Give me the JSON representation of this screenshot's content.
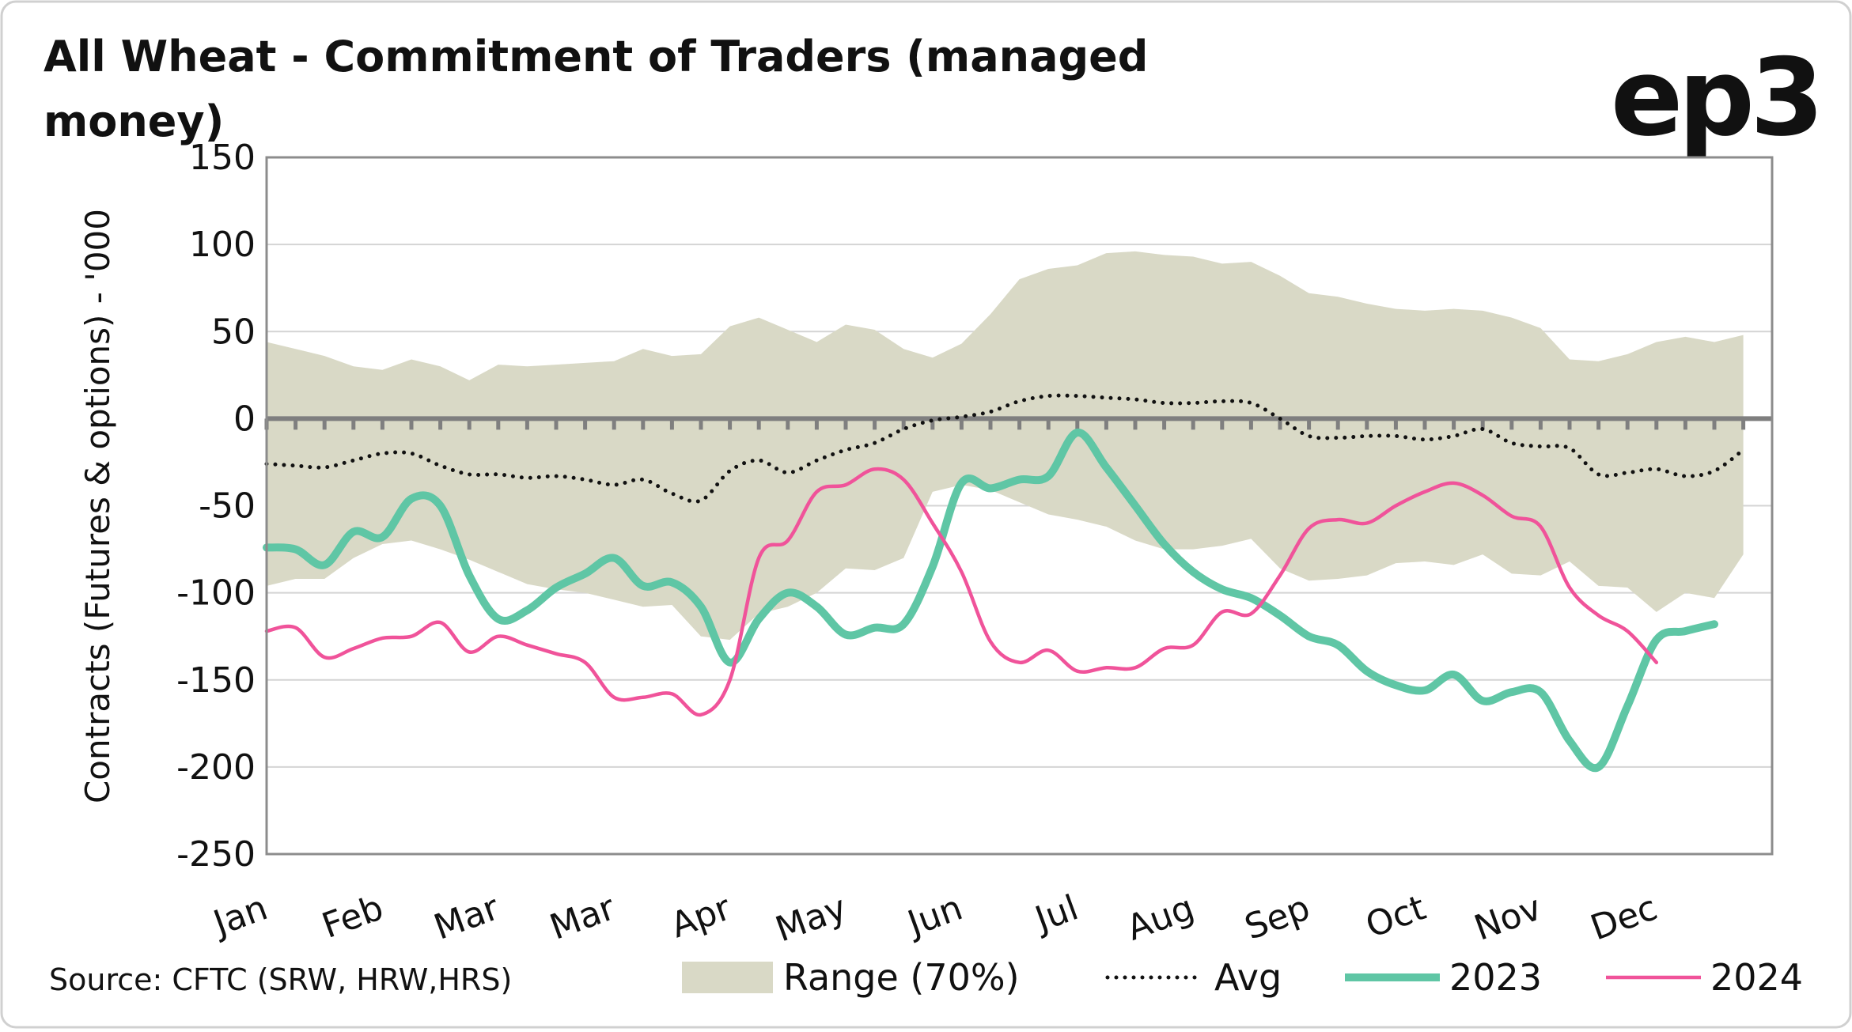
{
  "chart_data": {
    "type": "line",
    "title": "All Wheat - Commitment of Traders (managed",
    "title_line2": "money)",
    "logo": "ep3",
    "source": "Source: CFTC (SRW, HRW,HRS)",
    "ylabel": "Contracts (Futures & options) - '000",
    "categories": [
      "Jan",
      null,
      null,
      null,
      "Feb",
      null,
      null,
      null,
      "Mar",
      null,
      null,
      null,
      "Mar",
      null,
      null,
      null,
      "Apr",
      null,
      null,
      null,
      "May",
      null,
      null,
      null,
      "Jun",
      null,
      null,
      null,
      "Jul",
      null,
      null,
      null,
      "Aug",
      null,
      null,
      null,
      "Sep",
      null,
      null,
      null,
      "Oct",
      null,
      null,
      null,
      "Nov",
      null,
      null,
      null,
      "Dec",
      null,
      null,
      null
    ],
    "ylim": [
      -250,
      150
    ],
    "yticks": [
      -250,
      -200,
      -150,
      -100,
      -50,
      0,
      50,
      100,
      150
    ],
    "grid": true,
    "series": [
      {
        "name": "Range (70%)",
        "type": "band",
        "color": "#d9d9c6",
        "upper": [
          44,
          40,
          36,
          30,
          28,
          34,
          30,
          22,
          31,
          30,
          31,
          32,
          33,
          40,
          36,
          37,
          53,
          58,
          51,
          44,
          54,
          51,
          40,
          35,
          43,
          60,
          80,
          86,
          88,
          95,
          96,
          94,
          93,
          89,
          90,
          82,
          72,
          70,
          66,
          63,
          62,
          63,
          62,
          58,
          52,
          34,
          33,
          37,
          44,
          47,
          44,
          48
        ],
        "lower": [
          -96,
          -92,
          -92,
          -80,
          -72,
          -70,
          -75,
          -81,
          -88,
          -95,
          -98,
          -100,
          -104,
          -108,
          -107,
          -125,
          -127,
          -112,
          -108,
          -100,
          -86,
          -87,
          -80,
          -42,
          -38,
          -41,
          -48,
          -55,
          -58,
          -62,
          -70,
          -75,
          -75,
          -73,
          -69,
          -86,
          -93,
          -92,
          -90,
          -83,
          -82,
          -84,
          -78,
          -89,
          -90,
          -82,
          -96,
          -97,
          -111,
          -100,
          -103,
          -78
        ]
      },
      {
        "name": "Avg",
        "type": "dotted",
        "color": "#111111",
        "values": [
          -26,
          -27,
          -28,
          -24,
          -20,
          -20,
          -27,
          -32,
          -32,
          -34,
          -33,
          -35,
          -38,
          -35,
          -43,
          -47,
          -30,
          -24,
          -31,
          -24,
          -18,
          -14,
          -6,
          -1,
          1,
          4,
          10,
          13,
          13,
          12,
          11,
          9,
          9,
          10,
          9,
          0,
          -10,
          -11,
          -10,
          -10,
          -12,
          -10,
          -6,
          -14,
          -16,
          -17,
          -32,
          -31,
          -29,
          -33,
          -30,
          -18
        ]
      },
      {
        "name": "2023",
        "type": "line",
        "color": "#5fc6a5",
        "width": 10,
        "values": [
          -74,
          -75,
          -84,
          -65,
          -68,
          -46,
          -50,
          -90,
          -115,
          -110,
          -97,
          -89,
          -80,
          -96,
          -94,
          -108,
          -140,
          -115,
          -100,
          -108,
          -124,
          -120,
          -118,
          -85,
          -37,
          -40,
          -35,
          -33,
          -8,
          -28,
          -50,
          -72,
          -88,
          -98,
          -103,
          -113,
          -125,
          -130,
          -145,
          -153,
          -156,
          -147,
          -162,
          -157,
          -157,
          -185,
          -200,
          -165,
          -127,
          -122,
          -118,
          null
        ]
      },
      {
        "name": "2024",
        "type": "line",
        "color": "#f0539a",
        "width": 4.5,
        "values": [
          -122,
          -120,
          -137,
          -132,
          -126,
          -125,
          -117,
          -134,
          -125,
          -130,
          -135,
          -140,
          -160,
          -160,
          -158,
          -170,
          -150,
          -80,
          -70,
          -42,
          -38,
          -29,
          -35,
          -60,
          -88,
          -128,
          -140,
          -133,
          -145,
          -143,
          -143,
          -132,
          -130,
          -111,
          -112,
          -90,
          -63,
          -58,
          -60,
          -50,
          -42,
          -37,
          -44,
          -56,
          -62,
          -97,
          -113,
          -122,
          -140,
          null,
          null,
          null
        ]
      }
    ]
  }
}
